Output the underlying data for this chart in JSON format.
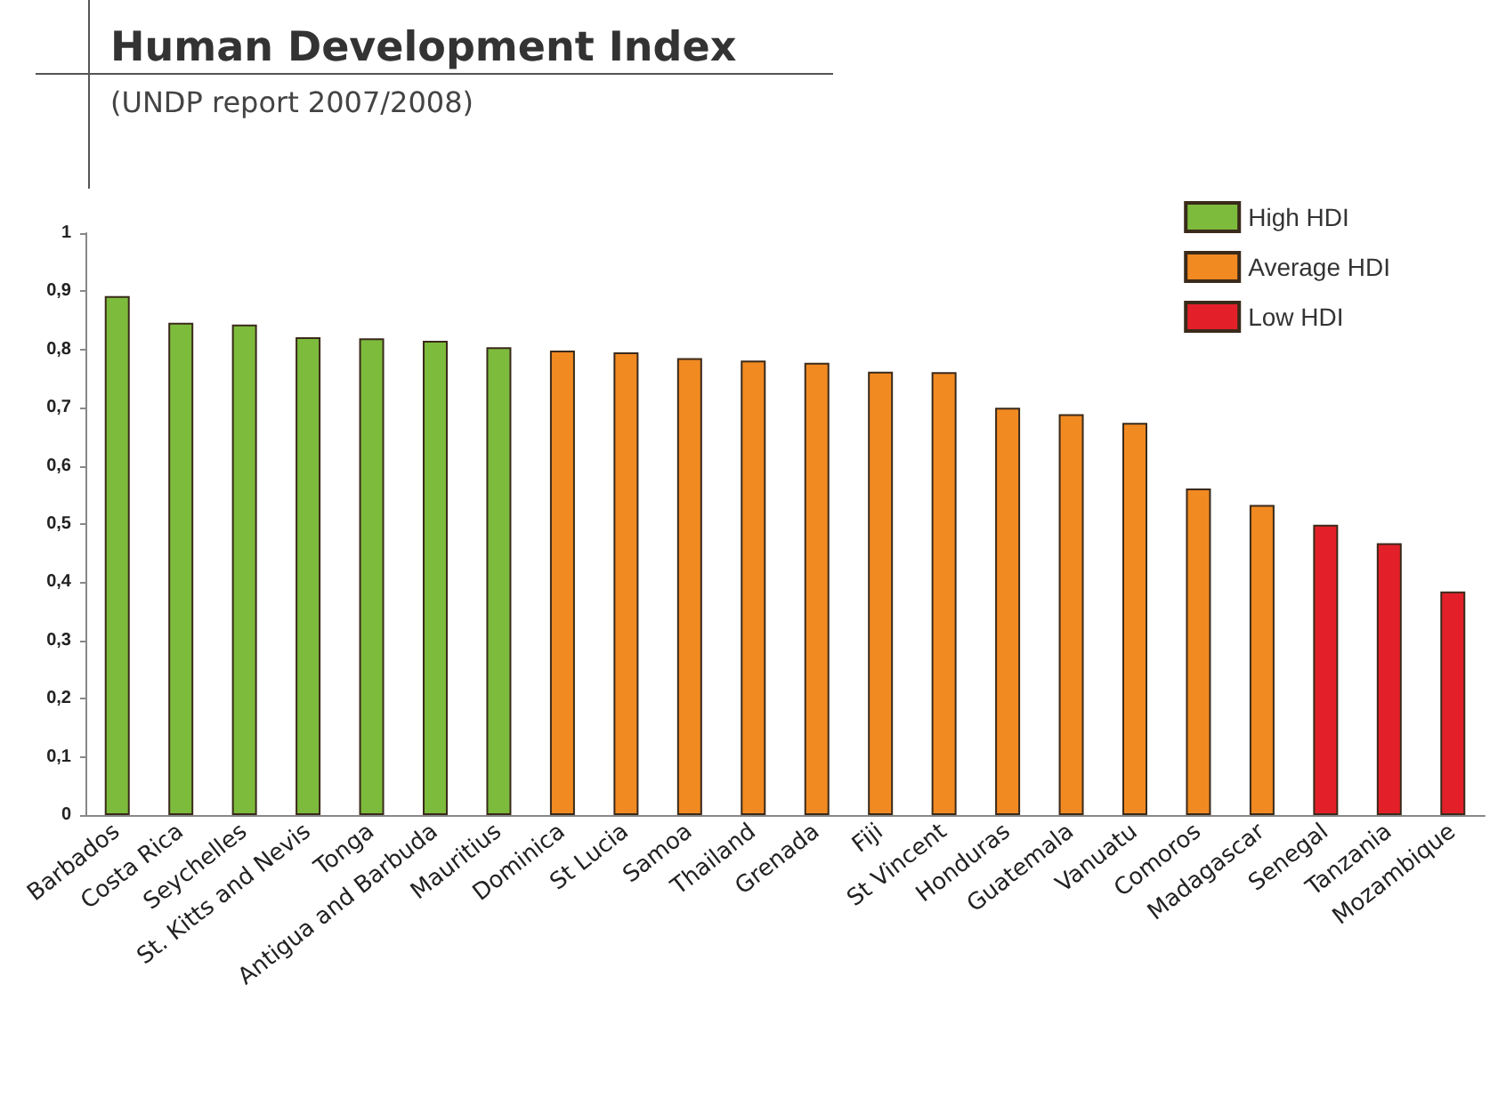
{
  "chart_data": {
    "type": "bar",
    "title": "Human Development Index",
    "subtitle": "(UNDP report 2007/2008)",
    "categories": [
      "Barbados",
      "Costa Rica",
      "Seychelles",
      "St. Kitts and Nevis",
      "Tonga",
      "Antigua and Barbuda",
      "Mauritius",
      "Dominica",
      "St Lucia",
      "Samoa",
      "Thailand",
      "Grenada",
      "Fiji",
      "St Vincent",
      "Honduras",
      "Guatemala",
      "Vanuatu",
      "Comoros",
      "Madagascar",
      "Senegal",
      "Tanzania",
      "Mozambique"
    ],
    "series": [
      {
        "name": "High HDI",
        "color": "#7dbb3c",
        "values": [
          0.892,
          0.846,
          0.843,
          0.821,
          0.819,
          0.815,
          0.804,
          null,
          null,
          null,
          null,
          null,
          null,
          null,
          null,
          null,
          null,
          null,
          null,
          null,
          null,
          null
        ]
      },
      {
        "name": "Average HDI",
        "color": "#f28a22",
        "values": [
          null,
          null,
          null,
          null,
          null,
          null,
          null,
          0.798,
          0.795,
          0.785,
          0.781,
          0.777,
          0.762,
          0.761,
          0.7,
          0.689,
          0.674,
          0.561,
          0.533,
          null,
          null,
          null
        ]
      },
      {
        "name": "Low HDI",
        "color": "#e3202a",
        "values": [
          null,
          null,
          null,
          null,
          null,
          null,
          null,
          null,
          null,
          null,
          null,
          null,
          null,
          null,
          null,
          null,
          null,
          null,
          null,
          0.499,
          0.467,
          0.384
        ]
      }
    ],
    "ylim": [
      0,
      1
    ],
    "yticks": [
      0,
      {
        "value": 0.1,
        "label": "0,1"
      },
      {
        "value": 0.2,
        "label": "0,2"
      },
      {
        "value": 0.3,
        "label": "0,3"
      },
      {
        "value": 0.4,
        "label": "0,4"
      },
      {
        "value": 0.5,
        "label": "0,5"
      },
      {
        "value": 0.6,
        "label": "0,6"
      },
      {
        "value": 0.7,
        "label": "0,7"
      },
      {
        "value": 0.8,
        "label": "0,8"
      },
      {
        "value": 0.9,
        "label": "0,9"
      },
      1
    ],
    "grid": false,
    "legend": "top right"
  }
}
